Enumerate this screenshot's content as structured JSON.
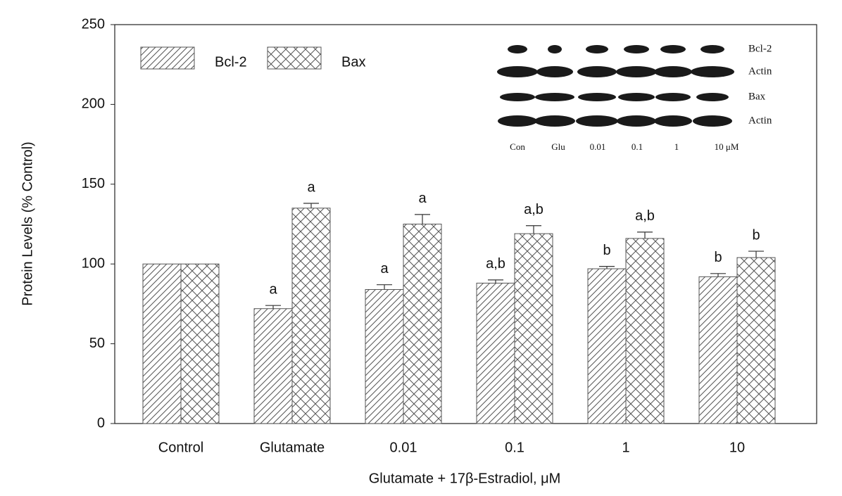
{
  "chart_data": {
    "type": "bar",
    "y_label": "Protein Levels (% Control)",
    "x_label": "Glutamate + 17β-Estradiol, μM",
    "categories": [
      "Control",
      "Glutamate",
      "0.01",
      "0.1",
      "1",
      "10"
    ],
    "series": [
      {
        "name": "Bcl-2",
        "color": "#555555",
        "pattern": "diagonal",
        "values": [
          100,
          72,
          84,
          88,
          97,
          92
        ],
        "errors": [
          0,
          2,
          3,
          2,
          1.5,
          2
        ],
        "annotations": [
          null,
          "a",
          "a",
          "a,b",
          "b",
          "b"
        ]
      },
      {
        "name": "Bax",
        "color": "#555555",
        "pattern": "crosshatch",
        "values": [
          100,
          135,
          125,
          119,
          116,
          104
        ],
        "errors": [
          0,
          3,
          6,
          5,
          4,
          4
        ],
        "annotations": [
          null,
          "a",
          "a",
          "a,b",
          "a,b",
          "b"
        ]
      }
    ],
    "ylim": [
      0,
      250
    ],
    "yticks": [
      0,
      50,
      100,
      150,
      200,
      250
    ],
    "legend": "top-left",
    "inset": {
      "row_labels": [
        "Bcl-2",
        "Actin",
        "Bax",
        "Actin"
      ],
      "lane_labels": [
        "Con",
        "Glu",
        "0.01",
        "0.1",
        "1",
        "10  μM"
      ]
    }
  }
}
